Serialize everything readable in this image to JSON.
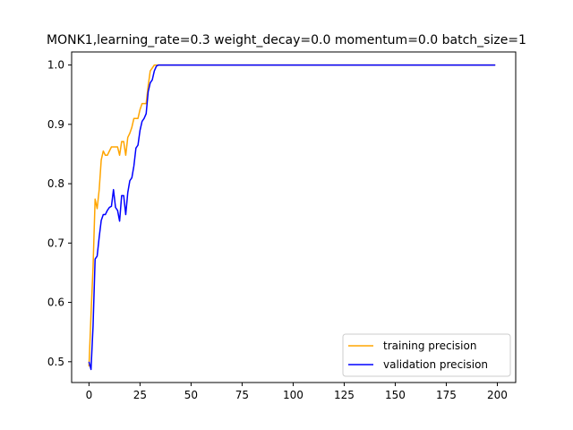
{
  "chart_data": {
    "type": "line",
    "title": "MONK1,learning_rate=0.3  weight_decay=0.0  momentum=0.0  batch_size=1",
    "xlabel": "",
    "ylabel": "",
    "xlim": [
      -8.5,
      209
    ],
    "ylim": [
      0.465,
      1.022
    ],
    "x_ticks": [
      0,
      25,
      50,
      75,
      100,
      125,
      150,
      175,
      200
    ],
    "y_ticks": [
      0.5,
      0.6,
      0.7,
      0.8,
      0.9,
      1.0
    ],
    "x_tick_labels": [
      "0",
      "25",
      "50",
      "75",
      "100",
      "125",
      "150",
      "175",
      "200"
    ],
    "y_tick_labels": [
      "0.5",
      "0.6",
      "0.7",
      "0.8",
      "0.9",
      "1.0"
    ],
    "grid": false,
    "legend_position": "lower right",
    "series": [
      {
        "name": "training precision",
        "color": "#ffa500",
        "points": [
          [
            0,
            0.492
          ],
          [
            1,
            0.58
          ],
          [
            2,
            0.66
          ],
          [
            3,
            0.774
          ],
          [
            4,
            0.758
          ],
          [
            5,
            0.79
          ],
          [
            6,
            0.84
          ],
          [
            7,
            0.855
          ],
          [
            8,
            0.848
          ],
          [
            9,
            0.848
          ],
          [
            10,
            0.855
          ],
          [
            11,
            0.862
          ],
          [
            12,
            0.862
          ],
          [
            13,
            0.862
          ],
          [
            14,
            0.862
          ],
          [
            15,
            0.848
          ],
          [
            16,
            0.871
          ],
          [
            17,
            0.871
          ],
          [
            18,
            0.848
          ],
          [
            19,
            0.878
          ],
          [
            20,
            0.885
          ],
          [
            21,
            0.895
          ],
          [
            22,
            0.91
          ],
          [
            23,
            0.91
          ],
          [
            24,
            0.91
          ],
          [
            25,
            0.925
          ],
          [
            26,
            0.935
          ],
          [
            27,
            0.935
          ],
          [
            28,
            0.935
          ],
          [
            29,
            0.965
          ],
          [
            30,
            0.99
          ],
          [
            31,
            0.995
          ],
          [
            32,
            1.0
          ],
          [
            33,
            1.0
          ],
          [
            35,
            1.0
          ],
          [
            199,
            1.0
          ]
        ]
      },
      {
        "name": "validation precision",
        "color": "#0000ff",
        "points": [
          [
            0,
            0.5
          ],
          [
            1,
            0.487
          ],
          [
            2,
            0.56
          ],
          [
            3,
            0.673
          ],
          [
            4,
            0.678
          ],
          [
            5,
            0.71
          ],
          [
            6,
            0.738
          ],
          [
            7,
            0.748
          ],
          [
            8,
            0.748
          ],
          [
            9,
            0.755
          ],
          [
            10,
            0.76
          ],
          [
            11,
            0.762
          ],
          [
            12,
            0.79
          ],
          [
            13,
            0.76
          ],
          [
            14,
            0.755
          ],
          [
            15,
            0.737
          ],
          [
            16,
            0.78
          ],
          [
            17,
            0.78
          ],
          [
            18,
            0.748
          ],
          [
            19,
            0.785
          ],
          [
            20,
            0.805
          ],
          [
            21,
            0.81
          ],
          [
            22,
            0.83
          ],
          [
            23,
            0.86
          ],
          [
            24,
            0.865
          ],
          [
            25,
            0.89
          ],
          [
            26,
            0.905
          ],
          [
            27,
            0.91
          ],
          [
            28,
            0.918
          ],
          [
            29,
            0.955
          ],
          [
            30,
            0.97
          ],
          [
            31,
            0.975
          ],
          [
            32,
            0.99
          ],
          [
            33,
            0.998
          ],
          [
            34,
            1.0
          ],
          [
            36,
            1.0
          ],
          [
            199,
            1.0
          ]
        ]
      }
    ]
  }
}
